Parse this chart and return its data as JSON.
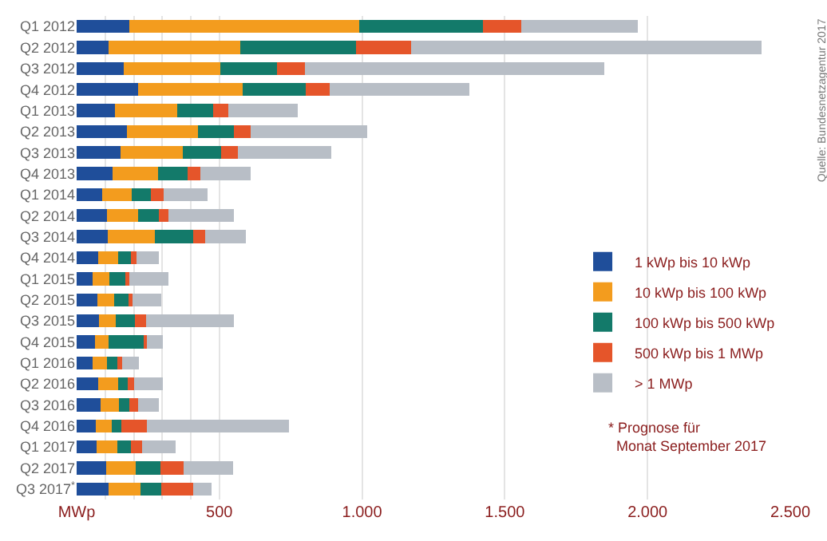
{
  "chart_data": {
    "type": "bar",
    "orientation": "horizontal",
    "stacked": true,
    "categories": [
      "Q1 2012",
      "Q2 2012",
      "Q3 2012",
      "Q4 2012",
      "Q1 2013",
      "Q2 2013",
      "Q3 2013",
      "Q4 2013",
      "Q1 2014",
      "Q2 2014",
      "Q3 2014",
      "Q4 2014",
      "Q1 2015",
      "Q2 2015",
      "Q3 2015",
      "Q4 2015",
      "Q1 2016",
      "Q2 2016",
      "Q3 2016",
      "Q4 2016",
      "Q1 2017",
      "Q2 2017",
      "Q3 2017$^{*}$"
    ],
    "series": [
      {
        "name": "1 kWp bis 10 kWp",
        "color": "#1f4e9a",
        "values": [
          184,
          111,
          164,
          214,
          135,
          177,
          155,
          125,
          89,
          105,
          109,
          76,
          57,
          74,
          79,
          65,
          55,
          76,
          83,
          66,
          70,
          103,
          113
        ]
      },
      {
        "name": "10 kWp bis 100 kWp",
        "color": "#f39c1e",
        "values": [
          805,
          463,
          338,
          369,
          217,
          247,
          218,
          159,
          105,
          111,
          164,
          68,
          59,
          57,
          59,
          48,
          52,
          68,
          66,
          58,
          72,
          105,
          110
        ]
      },
      {
        "name": "100 kWp bis 500 kWp",
        "color": "#137a6a",
        "values": [
          434,
          404,
          199,
          220,
          126,
          126,
          133,
          105,
          66,
          72,
          135,
          46,
          54,
          50,
          67,
          123,
          35,
          35,
          36,
          33,
          48,
          85,
          72
        ]
      },
      {
        "name": "500 kWp bis 1 MWp",
        "color": "#e5552a",
        "values": [
          134,
          195,
          98,
          83,
          53,
          59,
          59,
          45,
          44,
          33,
          42,
          20,
          15,
          15,
          37,
          9,
          17,
          22,
          29,
          88,
          39,
          83,
          113
        ]
      },
      {
        "name": "> 1 MWp",
        "color": "#b8bec6",
        "values": [
          408,
          1227,
          1050,
          489,
          244,
          409,
          328,
          175,
          154,
          231,
          142,
          78,
          136,
          99,
          308,
          56,
          59,
          100,
          74,
          499,
          118,
          172,
          64
        ]
      }
    ],
    "xlim": [
      0,
      2500
    ],
    "xticks": [
      {
        "value": 0,
        "label": "MWp"
      },
      {
        "value": 100,
        "label": null
      },
      {
        "value": 200,
        "label": null
      },
      {
        "value": 300,
        "label": null
      },
      {
        "value": 400,
        "label": null
      },
      {
        "value": 500,
        "label": "500"
      },
      {
        "value": 1000,
        "label": "1.000"
      },
      {
        "value": 1500,
        "label": "1.500"
      },
      {
        "value": 2000,
        "label": "2.000"
      },
      {
        "value": 2500,
        "label": "2.500"
      }
    ],
    "grid": "x",
    "legend": "right",
    "annotations": [
      "Quelle: Bundesnetzagentur 2017",
      "* Prognose für Monat September 2017"
    ]
  }
}
